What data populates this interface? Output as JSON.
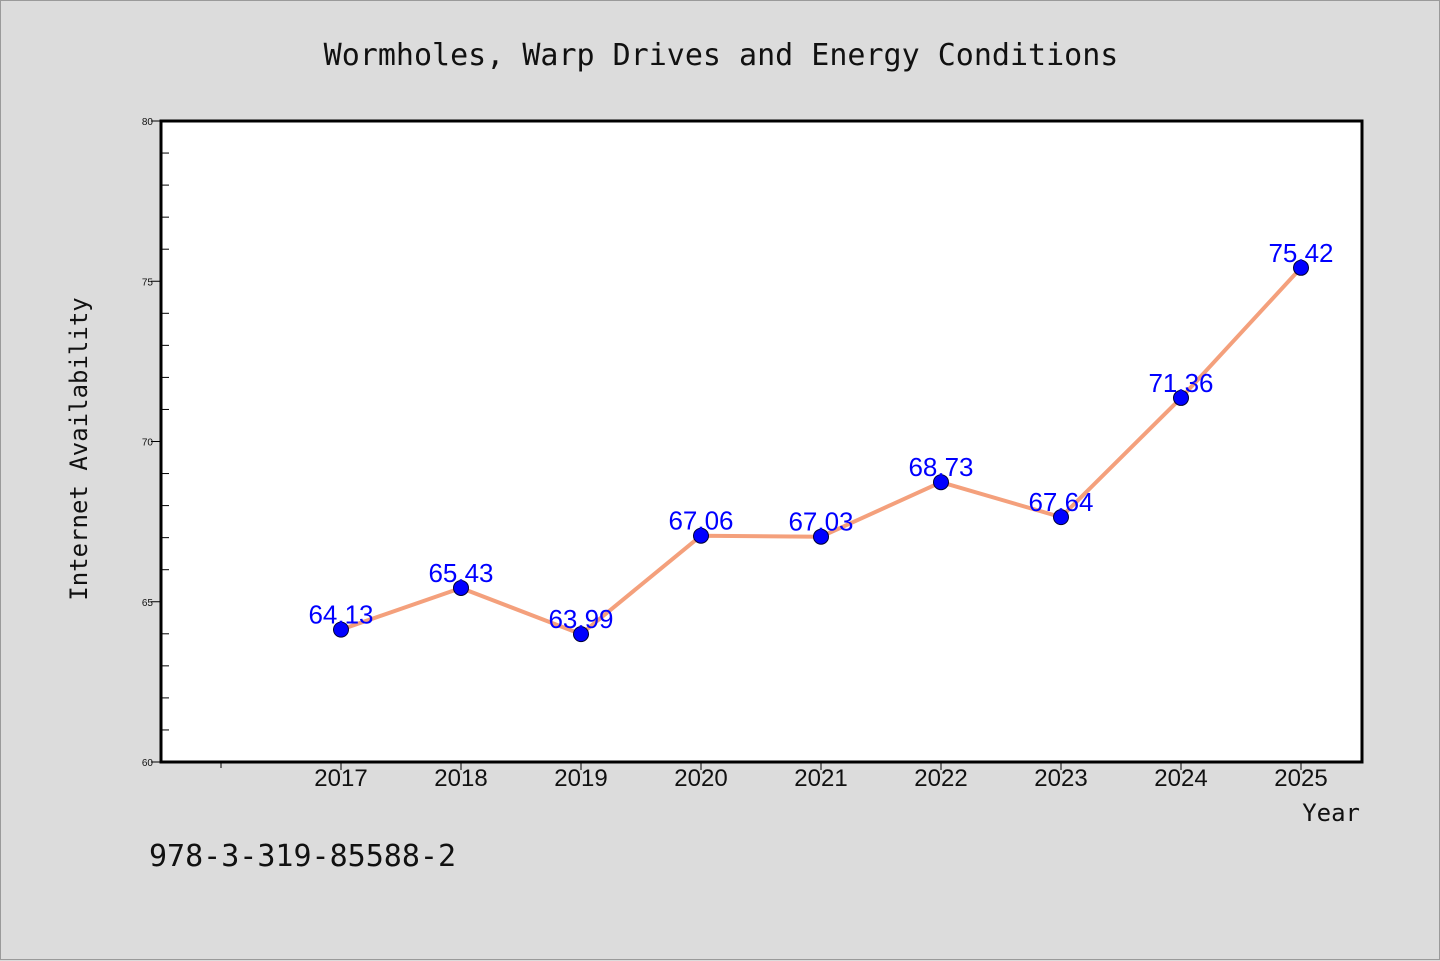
{
  "colors": {
    "background": "#dcdcdc",
    "plot_background": "#ffffff",
    "line": "#f4a07c",
    "marker": "#0000ff",
    "data_label": "#0000ff"
  },
  "footer": {
    "isbn": "978-3-319-85588-2"
  },
  "chart_data": {
    "type": "line",
    "title": "Wormholes, Warp Drives and Energy Conditions",
    "xlabel": "Year",
    "ylabel": "Internet Availability",
    "categories": [
      "2017",
      "2018",
      "2019",
      "2020",
      "2021",
      "2022",
      "2023",
      "2024",
      "2025"
    ],
    "series": [
      {
        "values": [
          64.13,
          65.43,
          63.99,
          67.06,
          67.03,
          68.73,
          67.64,
          71.36,
          75.42
        ]
      }
    ],
    "data_labels": [
      "64.13",
      "65.43",
      "63.99",
      "67.06",
      "67.03",
      "68.73",
      "67.64",
      "71.36",
      "75.42"
    ],
    "ylim": [
      60,
      80
    ],
    "yticks": [
      60,
      65,
      70,
      75,
      80
    ],
    "ytick_labels": [
      "60",
      "65",
      "70",
      "75",
      "80"
    ],
    "y_minor_step": 1,
    "grid": false,
    "markers": true
  }
}
